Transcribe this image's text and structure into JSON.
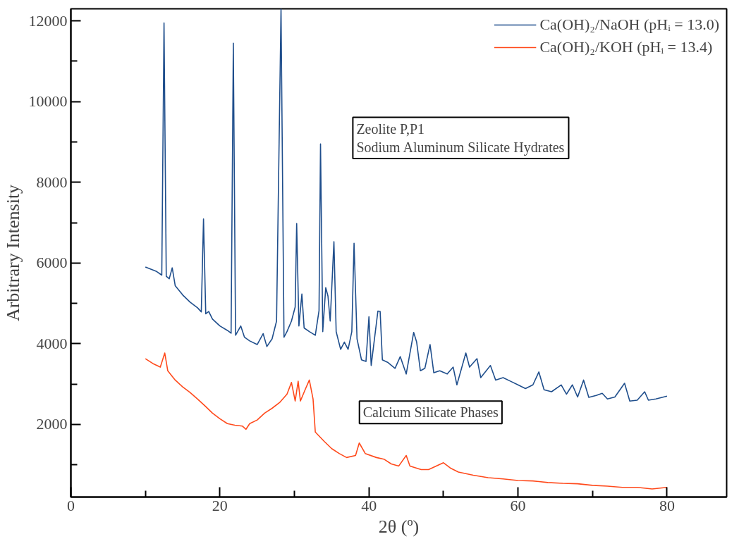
{
  "chart_data": {
    "type": "line",
    "xlabel": "2θ (º)",
    "ylabel": "Arbitrary Intensity",
    "xlim": [
      0,
      88
    ],
    "ylim": [
      200,
      12300
    ],
    "xticks": [
      0,
      {
        "value": 10,
        "label": null
      },
      20,
      {
        "value": 30,
        "label": null
      },
      40,
      {
        "value": 50,
        "label": null
      },
      60,
      {
        "value": 70,
        "label": null
      },
      80
    ],
    "yticks": [
      {
        "value": 1000,
        "label": null
      },
      2000,
      {
        "value": 3000,
        "label": null
      },
      4000,
      {
        "value": 5000,
        "label": null
      },
      6000,
      {
        "value": 7000,
        "label": null
      },
      8000,
      {
        "value": 9000,
        "label": null
      },
      10000,
      {
        "value": 11000,
        "label": null
      },
      12000
    ],
    "grid": false,
    "legend": "top right",
    "line_style": "solid",
    "marker": "none",
    "annotations": [
      "Zeolite P,P1\nSodium Aluminum Silicate Hydrates",
      "Calcium Silicate Phases"
    ],
    "series": [
      {
        "name": "Ca(OH)₂/NaOH (pHᵢ = 13.0)",
        "color": "#1f4e8c",
        "x": [
          10,
          11.5,
          12.2,
          12.5,
          12.8,
          13.2,
          13.6,
          14,
          15,
          16,
          17,
          17.5,
          17.8,
          18.1,
          18.5,
          19,
          20,
          21,
          21.5,
          21.8,
          22.1,
          22.8,
          23.3,
          24,
          25,
          25.8,
          26.3,
          27,
          27.6,
          28.2,
          28.6,
          29,
          29.6,
          30.1,
          30.3,
          30.6,
          31,
          31.3,
          32,
          32.8,
          33.3,
          33.5,
          33.8,
          34.2,
          34.5,
          34.8,
          35.3,
          35.6,
          36.2,
          36.7,
          37.2,
          37.7,
          38,
          38.4,
          39,
          39.6,
          40,
          40.3,
          41.2,
          41.5,
          41.8,
          42.5,
          43.5,
          44.2,
          45,
          46,
          46.4,
          46.9,
          47.5,
          48.2,
          48.7,
          49.5,
          50.5,
          51.3,
          51.8,
          53,
          53.5,
          54.5,
          55,
          56.3,
          57,
          58,
          59,
          60,
          61,
          62,
          62.8,
          63.5,
          64.5,
          65.8,
          66.5,
          67.3,
          68,
          68.8,
          69.5,
          70.5,
          71.3,
          72,
          73,
          74.3,
          75,
          76,
          77,
          77.5,
          78.5,
          80
        ],
        "values": [
          5900,
          5790,
          5700,
          11950,
          5670,
          5610,
          5880,
          5440,
          5210,
          5030,
          4890,
          4790,
          7090,
          4740,
          4800,
          4610,
          4440,
          4330,
          4260,
          11450,
          4210,
          4440,
          4160,
          4070,
          3980,
          4250,
          3930,
          4120,
          4560,
          12300,
          4160,
          4300,
          4560,
          4910,
          6980,
          4440,
          5230,
          4390,
          4300,
          4210,
          4820,
          8950,
          4300,
          5390,
          5180,
          4560,
          6530,
          4300,
          3860,
          4040,
          3860,
          4300,
          6490,
          4120,
          3600,
          3560,
          4670,
          3460,
          4810,
          4800,
          3600,
          3540,
          3390,
          3680,
          3250,
          4280,
          4040,
          3330,
          3390,
          3980,
          3280,
          3330,
          3250,
          3420,
          2980,
          3770,
          3420,
          3630,
          3160,
          3460,
          3100,
          3160,
          3070,
          2980,
          2890,
          2980,
          3300,
          2860,
          2810,
          2980,
          2750,
          2980,
          2680,
          3100,
          2670,
          2720,
          2770,
          2630,
          2680,
          3020,
          2580,
          2600,
          2810,
          2600,
          2630,
          2700
        ]
      },
      {
        "name": "Ca(OH)₂/KOH (pHᵢ = 13.4)",
        "color": "#ff4a1c",
        "x": [
          10,
          11,
          12,
          12.6,
          13,
          14,
          15,
          16,
          17,
          18,
          19,
          20,
          21,
          22,
          23,
          23.5,
          24,
          25,
          26,
          27,
          28,
          29,
          29.6,
          30.1,
          30.5,
          30.8,
          31.5,
          32,
          32.5,
          32.8,
          34,
          35,
          36,
          37,
          38.2,
          38.7,
          39.5,
          41,
          42,
          43,
          44,
          45,
          45.5,
          47,
          48,
          50,
          51,
          52,
          54,
          56,
          58,
          60,
          62,
          64,
          66,
          68,
          70,
          72,
          74,
          76,
          78,
          80
        ],
        "values": [
          3630,
          3510,
          3420,
          3770,
          3330,
          3100,
          2930,
          2790,
          2630,
          2460,
          2280,
          2140,
          2020,
          1980,
          1960,
          1880,
          2020,
          2110,
          2280,
          2400,
          2540,
          2750,
          3040,
          2580,
          3070,
          2580,
          2890,
          3100,
          2630,
          1810,
          1580,
          1400,
          1280,
          1180,
          1230,
          1540,
          1280,
          1180,
          1140,
          1020,
          970,
          1230,
          970,
          880,
          880,
          1050,
          910,
          820,
          740,
          680,
          650,
          610,
          600,
          560,
          540,
          530,
          490,
          470,
          440,
          440,
          400,
          440
        ]
      }
    ]
  }
}
